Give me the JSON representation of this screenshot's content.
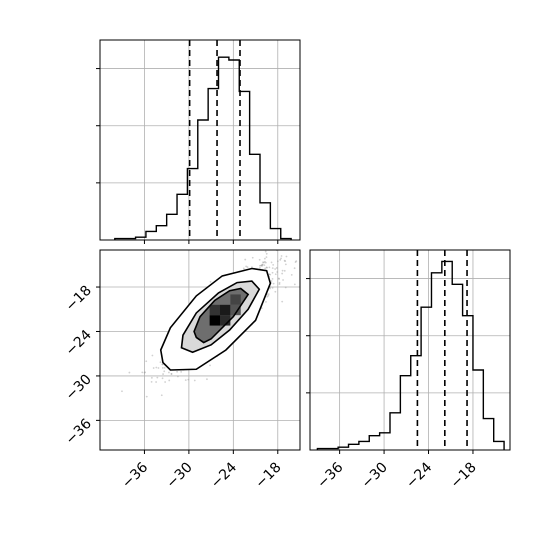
{
  "chart_data": [
    {
      "type": "histogram",
      "panel": "top-left",
      "xlim": [
        -42,
        -15
      ],
      "grid": true,
      "bins": [
        -40,
        -38.6,
        -37.2,
        -35.8,
        -34.4,
        -33,
        -31.6,
        -30.2,
        -28.8,
        -27.4,
        -26,
        -24.6,
        -23.2,
        -21.8,
        -20.4,
        -19,
        -17.6,
        -16.2
      ],
      "counts": [
        0.005,
        0.005,
        0.01,
        0.03,
        0.05,
        0.09,
        0.16,
        0.25,
        0.42,
        0.53,
        0.64,
        0.63,
        0.52,
        0.3,
        0.13,
        0.04,
        0.005
      ],
      "ylim": [
        0,
        0.7
      ],
      "quantile_lines": [
        -29.9,
        -26.2,
        -23.1
      ]
    },
    {
      "type": "hexbin-density",
      "panel": "bottom-left",
      "xlim": [
        -42,
        -15
      ],
      "ylim": [
        -40,
        -13
      ],
      "grid": true,
      "xticks": [
        -36,
        -30,
        -24,
        -18
      ],
      "yticks": [
        -18,
        -24,
        -30,
        -36
      ],
      "xtick_labels": [
        "−36",
        "−30",
        "−24",
        "−18"
      ],
      "ytick_labels": [
        "−18",
        "−24",
        "−30",
        "−36"
      ],
      "correlation": "positive",
      "center": [
        -25.5,
        -21.8
      ],
      "contours": [
        [
          [
            -29,
            -24.8
          ],
          [
            -28,
            -25.5
          ],
          [
            -27,
            -25
          ],
          [
            -24,
            -22
          ],
          [
            -22,
            -19
          ],
          [
            -23,
            -18.2
          ],
          [
            -24.5,
            -18.5
          ],
          [
            -26.5,
            -19.8
          ],
          [
            -28.5,
            -22
          ],
          [
            -29.3,
            -24
          ]
        ],
        [
          [
            -31,
            -26.2
          ],
          [
            -29.5,
            -26.8
          ],
          [
            -27,
            -25.8
          ],
          [
            -24.5,
            -23.8
          ],
          [
            -22,
            -21
          ],
          [
            -20.5,
            -18.3
          ],
          [
            -21.5,
            -17.2
          ],
          [
            -23.5,
            -17.4
          ],
          [
            -26,
            -18.8
          ],
          [
            -29,
            -21.5
          ],
          [
            -30.8,
            -24.5
          ]
        ],
        [
          [
            -33.5,
            -28.2
          ],
          [
            -32.5,
            -29.2
          ],
          [
            -29,
            -29.1
          ],
          [
            -25,
            -26.5
          ],
          [
            -21,
            -22.5
          ],
          [
            -19,
            -17.5
          ],
          [
            -19.5,
            -15.8
          ],
          [
            -21.5,
            -15.5
          ],
          [
            -25.5,
            -16.5
          ],
          [
            -29,
            -19.2
          ],
          [
            -32.5,
            -23.5
          ],
          [
            -33.8,
            -26.5
          ]
        ]
      ]
    },
    {
      "type": "histogram",
      "panel": "bottom-right",
      "xlim": [
        -40,
        -13
      ],
      "grid": true,
      "xticks": [
        -36,
        -30,
        -24,
        -18
      ],
      "xtick_labels": [
        "−36",
        "−30",
        "−24",
        "−18"
      ],
      "bins": [
        -39,
        -37.6,
        -36.2,
        -34.8,
        -33.4,
        -32,
        -30.6,
        -29.2,
        -27.8,
        -26.4,
        -25,
        -23.6,
        -22.2,
        -20.8,
        -19.4,
        -18,
        -16.6,
        -15.2,
        -13.8
      ],
      "counts": [
        0.005,
        0.005,
        0.01,
        0.02,
        0.03,
        0.05,
        0.06,
        0.13,
        0.26,
        0.33,
        0.5,
        0.62,
        0.66,
        0.58,
        0.47,
        0.28,
        0.11,
        0.03
      ],
      "ylim": [
        0,
        0.7
      ],
      "quantile_lines": [
        -25.5,
        -21.8,
        -18.8
      ]
    }
  ]
}
